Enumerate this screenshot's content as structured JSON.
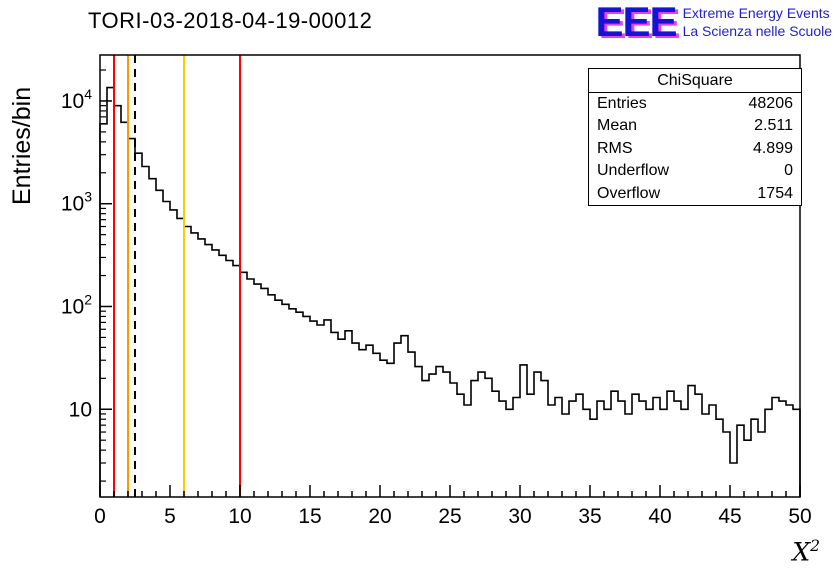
{
  "logo": {
    "acronym": "EEE",
    "line1": "Extreme Energy Events",
    "line2": "La Scienza nelle Scuole",
    "acronym_color": "#1414d2",
    "shadow_color": "#e93fe9",
    "text_color": "#2222cc"
  },
  "stats": {
    "title": "ChiSquare",
    "rows": [
      {
        "label": "Entries",
        "value": "48206"
      },
      {
        "label": "Mean",
        "value": "2.511"
      },
      {
        "label": "RMS",
        "value": "4.899"
      },
      {
        "label": "Underflow",
        "value": "0"
      },
      {
        "label": "Overflow",
        "value": "1754"
      }
    ]
  },
  "chart_data": {
    "type": "bar",
    "subtype": "step-histogram",
    "title": "TORI-03-2018-04-19-00012",
    "ylabel": "Entries/bin",
    "xlabel_base": "X",
    "xlabel_exp": "2",
    "xlim": [
      0,
      50
    ],
    "ylim": [
      1.4,
      28000
    ],
    "yscale": "log",
    "grid": false,
    "bin_width": 0.5,
    "x_major_ticks": [
      0,
      5,
      10,
      15,
      20,
      25,
      30,
      35,
      40,
      45,
      50
    ],
    "x_minor_step": 1,
    "y_decades": [
      1,
      2,
      3,
      4
    ],
    "line_color": "#000000",
    "series": [
      {
        "name": "ChiSquare",
        "values": [
          6000,
          13500,
          9000,
          6200,
          4300,
          3100,
          2300,
          1750,
          1350,
          1050,
          870,
          720,
          600,
          520,
          455,
          400,
          355,
          315,
          280,
          250,
          215,
          185,
          165,
          150,
          130,
          115,
          105,
          95,
          88,
          80,
          72,
          66,
          74,
          56,
          48,
          58,
          44,
          38,
          42,
          35,
          30,
          28,
          44,
          52,
          36,
          26,
          19,
          22,
          26,
          23,
          18,
          14,
          11,
          19,
          23,
          20,
          15,
          12,
          10,
          13,
          27,
          14,
          23,
          19,
          11,
          13,
          9,
          12,
          14,
          10,
          8,
          12,
          10,
          15,
          12,
          9,
          14,
          12,
          10,
          13,
          10,
          15,
          12,
          10,
          17,
          14,
          9,
          11,
          8,
          6,
          3,
          7,
          5,
          8,
          6,
          10,
          13,
          12,
          11,
          10
        ]
      }
    ],
    "vlines": [
      {
        "x": 1,
        "color": "#ff0000",
        "dash": false
      },
      {
        "x": 2,
        "color": "#ff9900",
        "dash": false
      },
      {
        "x": 2.5,
        "color": "#000000",
        "dash": true
      },
      {
        "x": 6,
        "color": "#ffcc00",
        "dash": false
      },
      {
        "x": 10,
        "color": "#ff0000",
        "dash": false
      }
    ]
  }
}
